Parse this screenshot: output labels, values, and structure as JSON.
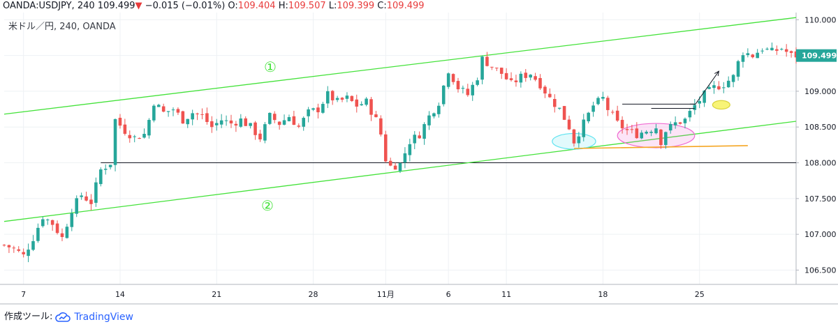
{
  "header": {
    "symbol": "OANDA:USDJPY, 240",
    "last": "109.499",
    "change_arrow": "▼",
    "change": "−0.015 (−0.01%)",
    "o_label": "O:",
    "o_value": "109.404",
    "h_label": "H:",
    "h_value": "109.507",
    "l_label": "L:",
    "l_value": "109.399",
    "c_label": "C:",
    "c_value": "109.499"
  },
  "subtitle": "米ドル／円, 240, OANDA",
  "footer": {
    "label": "作成ツール:",
    "brand": "TradingView",
    "brand_icon": "tradingview-cloud-icon"
  },
  "colors": {
    "up": "#26a69a",
    "down": "#ef5350",
    "channel": "#44e23a",
    "support": "#131722",
    "orange": "#f5a623",
    "cyan": "#5ee3f0",
    "pink": "#f06bd2",
    "yellow": "#f6f04a",
    "price_tag": "#26a69a"
  },
  "chart_data": {
    "type": "candlestick",
    "ylim": [
      106.3,
      110.1
    ],
    "yticks": [
      "110.000",
      "109.500",
      "109.000",
      "108.500",
      "108.000",
      "107.500",
      "107.000",
      "106.500"
    ],
    "ytick_values": [
      110.0,
      109.5,
      109.0,
      108.5,
      108.0,
      107.5,
      107.0,
      106.5
    ],
    "xlim": [
      0,
      164
    ],
    "xticks": [
      "7",
      "14",
      "21",
      "28",
      "11月",
      "6",
      "11",
      "18",
      "25"
    ],
    "xtick_positions": [
      4,
      24,
      44,
      64,
      79,
      92,
      104,
      124,
      144
    ],
    "last_price": "109.499",
    "last_price_value": 109.499,
    "labels": {
      "channel_top": "①",
      "channel_bottom": "②"
    },
    "channel_top": {
      "x": [
        0,
        164
      ],
      "y": [
        108.68,
        110.03
      ]
    },
    "channel_bottom": {
      "x": [
        0,
        164
      ],
      "y": [
        107.18,
        108.58
      ]
    },
    "support_line": {
      "y": 108.0,
      "x": [
        20,
        164
      ]
    },
    "orange_line": {
      "x": [
        118,
        154
      ],
      "y": [
        108.2,
        108.24
      ]
    },
    "resistance_lines": [
      {
        "x": [
          128,
          143
        ],
        "y": 108.82
      },
      {
        "x": [
          134,
          143
        ],
        "y": 108.76
      }
    ],
    "arrows": [
      {
        "x": [
          142,
          148
        ],
        "y": [
          108.82,
          109.28
        ]
      }
    ],
    "ellipses": [
      {
        "name": "cyan",
        "cx": 118,
        "cy": 108.3,
        "rx": 4.5,
        "ry": 0.11
      },
      {
        "name": "pink",
        "cx": 135,
        "cy": 108.38,
        "rx": 8,
        "ry": 0.17
      },
      {
        "name": "yellow",
        "cx": 148.5,
        "cy": 108.81,
        "rx": 1.8,
        "ry": 0.06
      }
    ],
    "close_path": [
      [
        0,
        106.85
      ],
      [
        2,
        106.8
      ],
      [
        4,
        106.7
      ],
      [
        6,
        106.95
      ],
      [
        8,
        107.25
      ],
      [
        10,
        107.15
      ],
      [
        12,
        106.95
      ],
      [
        14,
        107.35
      ],
      [
        16,
        107.55
      ],
      [
        18,
        107.45
      ],
      [
        20,
        107.9
      ],
      [
        22,
        108.0
      ],
      [
        23,
        108.6
      ],
      [
        25,
        108.45
      ],
      [
        27,
        108.35
      ],
      [
        29,
        108.4
      ],
      [
        30,
        108.6
      ],
      [
        31,
        108.85
      ],
      [
        33,
        108.7
      ],
      [
        35,
        108.75
      ],
      [
        37,
        108.6
      ],
      [
        39,
        108.7
      ],
      [
        41,
        108.65
      ],
      [
        43,
        108.5
      ],
      [
        45,
        108.6
      ],
      [
        47,
        108.55
      ],
      [
        49,
        108.6
      ],
      [
        51,
        108.5
      ],
      [
        53,
        108.35
      ],
      [
        55,
        108.65
      ],
      [
        57,
        108.55
      ],
      [
        59,
        108.65
      ],
      [
        61,
        108.5
      ],
      [
        63,
        108.7
      ],
      [
        65,
        108.75
      ],
      [
        67,
        108.95
      ],
      [
        69,
        108.85
      ],
      [
        71,
        108.9
      ],
      [
        73,
        108.8
      ],
      [
        75,
        108.85
      ],
      [
        77,
        108.6
      ],
      [
        78,
        108.4
      ],
      [
        79,
        108.05
      ],
      [
        80,
        107.95
      ],
      [
        82,
        107.98
      ],
      [
        84,
        108.3
      ],
      [
        86,
        108.4
      ],
      [
        88,
        108.65
      ],
      [
        90,
        108.85
      ],
      [
        92,
        109.3
      ],
      [
        94,
        109.05
      ],
      [
        96,
        108.95
      ],
      [
        98,
        109.2
      ],
      [
        99,
        109.45
      ],
      [
        101,
        109.35
      ],
      [
        103,
        109.25
      ],
      [
        105,
        109.1
      ],
      [
        107,
        109.2
      ],
      [
        109,
        109.25
      ],
      [
        111,
        109.1
      ],
      [
        113,
        108.9
      ],
      [
        115,
        108.75
      ],
      [
        117,
        108.5
      ],
      [
        118,
        108.3
      ],
      [
        120,
        108.55
      ],
      [
        122,
        108.8
      ],
      [
        124,
        108.9
      ],
      [
        125,
        108.75
      ],
      [
        127,
        108.55
      ],
      [
        129,
        108.45
      ],
      [
        131,
        108.4
      ],
      [
        133,
        108.45
      ],
      [
        135,
        108.5
      ],
      [
        136,
        108.3
      ],
      [
        137,
        108.45
      ],
      [
        139,
        108.55
      ],
      [
        141,
        108.6
      ],
      [
        143,
        108.8
      ],
      [
        145,
        108.95
      ],
      [
        147,
        109.05
      ],
      [
        149,
        109.1
      ],
      [
        151,
        109.2
      ],
      [
        152,
        109.4
      ],
      [
        153,
        109.55
      ],
      [
        155,
        109.5
      ],
      [
        157,
        109.6
      ],
      [
        159,
        109.55
      ],
      [
        161,
        109.6
      ],
      [
        163,
        109.5
      ]
    ]
  }
}
